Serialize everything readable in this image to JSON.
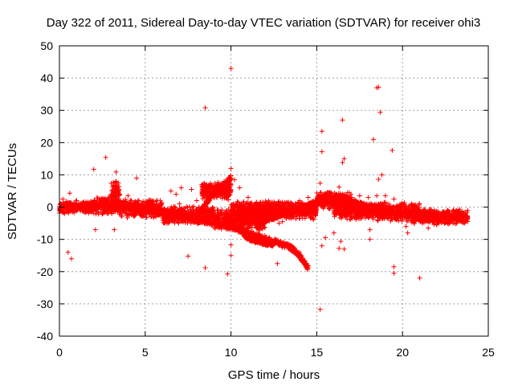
{
  "chart_data": {
    "type": "scatter",
    "title": "Day 322 of 2011, Sidereal Day-to-day VTEC variation (SDTVAR) for receiver ohi3",
    "xlabel": "GPS time / hours",
    "ylabel": "SDTVAR / TECUs",
    "xlim": [
      0,
      25
    ],
    "ylim": [
      -40,
      50
    ],
    "x_ticks": [
      0,
      5,
      10,
      15,
      20,
      25
    ],
    "y_ticks": [
      -40,
      -30,
      -20,
      -10,
      0,
      10,
      20,
      30,
      40,
      50
    ],
    "x_tick_labels": [
      "0",
      "5",
      "10",
      "15",
      "20",
      "25"
    ],
    "y_tick_labels": [
      "-40",
      "-30",
      "-20",
      "-10",
      "0",
      "10",
      "20",
      "30",
      "40",
      "50"
    ],
    "grid": true,
    "marker": "+",
    "color": "#ff0000",
    "series": [
      {
        "name": "SDTVAR",
        "points": [
          [
            10.0,
            43.0
          ],
          [
            18.5,
            37.0
          ],
          [
            18.6,
            37.2
          ],
          [
            8.5,
            30.8
          ],
          [
            18.7,
            29.4
          ],
          [
            16.5,
            27.0
          ],
          [
            15.3,
            23.5
          ],
          [
            18.3,
            21.0
          ],
          [
            15.3,
            17.2
          ],
          [
            19.4,
            17.6
          ],
          [
            2.7,
            15.4
          ],
          [
            16.6,
            15.0
          ],
          [
            16.5,
            13.8
          ],
          [
            10.0,
            12.0
          ],
          [
            2.0,
            11.7
          ],
          [
            3.3,
            10.9
          ],
          [
            18.8,
            10.0
          ],
          [
            4.5,
            9.0
          ],
          [
            18.6,
            8.6
          ],
          [
            7.1,
            6.0
          ],
          [
            7.7,
            5.5
          ],
          [
            15.2,
            7.4
          ],
          [
            16.3,
            6.2
          ],
          [
            0.2,
            2.5
          ],
          [
            0.4,
            1.8
          ],
          [
            0.6,
            0.5
          ],
          [
            0.8,
            1.0
          ],
          [
            1.0,
            2.0
          ],
          [
            1.2,
            -0.5
          ],
          [
            1.5,
            0.8
          ],
          [
            0.3,
            -2.0
          ],
          [
            0.6,
            4.3
          ],
          [
            0.5,
            -14.0
          ],
          [
            0.7,
            -16.0
          ],
          [
            2.1,
            -7.0
          ],
          [
            3.2,
            -7.0
          ],
          [
            7.5,
            -15.2
          ],
          [
            8.5,
            -18.8
          ],
          [
            9.0,
            3.0
          ],
          [
            9.2,
            -1.0
          ],
          [
            9.8,
            -20.7
          ],
          [
            10.0,
            -11.7
          ],
          [
            10.0,
            -15.0
          ],
          [
            12.7,
            -17.5
          ],
          [
            14.0,
            -14.0
          ],
          [
            15.2,
            -31.7
          ],
          [
            15.3,
            -12.0
          ],
          [
            15.5,
            -9.5
          ],
          [
            16.3,
            -12.8
          ],
          [
            16.6,
            -13.0
          ],
          [
            16.4,
            -10.6
          ],
          [
            16.0,
            -8.0
          ],
          [
            18.1,
            -10.0
          ],
          [
            18.1,
            -7.0
          ],
          [
            19.5,
            -18.5
          ],
          [
            19.5,
            -20.5
          ],
          [
            20.2,
            -6.0
          ],
          [
            21.0,
            -22.0
          ],
          [
            20.3,
            -8.0
          ],
          [
            21.5,
            -6.5
          ],
          [
            22.0,
            -5.5
          ],
          [
            23.0,
            -5.0
          ],
          [
            4.0,
            3.5
          ],
          [
            4.5,
            1.5
          ],
          [
            5.0,
            0.5
          ],
          [
            5.5,
            -1.0
          ],
          [
            6.0,
            -2.0
          ],
          [
            6.5,
            -2.5
          ],
          [
            7.0,
            -3.0
          ],
          [
            7.5,
            -3.5
          ],
          [
            8.0,
            -4.0
          ],
          [
            8.5,
            -4.5
          ],
          [
            9.0,
            -5.0
          ],
          [
            9.5,
            -5.5
          ],
          [
            10.5,
            -6.0
          ],
          [
            11.0,
            -8.0
          ],
          [
            11.5,
            -9.5
          ],
          [
            12.0,
            -10.5
          ],
          [
            12.5,
            -11.5
          ],
          [
            13.0,
            -12.5
          ],
          [
            13.5,
            -13.5
          ],
          [
            14.0,
            -15.5
          ],
          [
            14.3,
            -17.5
          ],
          [
            14.5,
            -18.8
          ],
          [
            8.0,
            2.0
          ],
          [
            8.5,
            0.0
          ],
          [
            8.3,
            7.0
          ],
          [
            8.5,
            4.5
          ],
          [
            8.8,
            6.5
          ],
          [
            9.2,
            7.0
          ],
          [
            9.6,
            8.0
          ],
          [
            10.0,
            9.0
          ],
          [
            10.2,
            8.5
          ],
          [
            10.5,
            6.0
          ],
          [
            11.0,
            3.0
          ],
          [
            11.5,
            1.5
          ],
          [
            12.0,
            0.5
          ],
          [
            12.5,
            0.0
          ],
          [
            13.0,
            -0.5
          ],
          [
            13.5,
            0.0
          ],
          [
            14.0,
            2.0
          ],
          [
            14.5,
            3.0
          ],
          [
            15.0,
            2.0
          ],
          [
            15.5,
            3.5
          ],
          [
            16.0,
            3.0
          ],
          [
            16.5,
            1.0
          ],
          [
            17.0,
            -1.0
          ],
          [
            17.5,
            -2.0
          ],
          [
            18.0,
            -3.0
          ],
          [
            18.5,
            -2.0
          ],
          [
            19.0,
            -1.0
          ],
          [
            19.5,
            -2.5
          ],
          [
            20.0,
            -3.0
          ],
          [
            20.5,
            -3.5
          ],
          [
            21.0,
            -4.0
          ],
          [
            21.5,
            -3.5
          ],
          [
            22.0,
            -3.0
          ],
          [
            22.5,
            -2.5
          ],
          [
            23.0,
            -3.5
          ],
          [
            23.5,
            -3.0
          ],
          [
            2.0,
            1.5
          ],
          [
            2.5,
            2.5
          ],
          [
            3.0,
            3.0
          ],
          [
            3.5,
            4.0
          ],
          [
            3.3,
            8.0
          ],
          [
            3.4,
            6.0
          ],
          [
            6.5,
            5.0
          ],
          [
            6.8,
            4.0
          ],
          [
            7.0,
            1.0
          ],
          [
            12.5,
            -4.0
          ],
          [
            12.8,
            -5.0
          ],
          [
            13.0,
            -4.5
          ],
          [
            13.5,
            -3.5
          ],
          [
            14.0,
            -2.5
          ],
          [
            16.5,
            4.0
          ],
          [
            17.0,
            3.0
          ],
          [
            17.5,
            3.5
          ],
          [
            18.0,
            3.0
          ],
          [
            18.5,
            3.5
          ],
          [
            19.0,
            3.5
          ],
          [
            19.5,
            2.5
          ],
          [
            20.0,
            1.0
          ],
          [
            20.5,
            0.0
          ],
          [
            21.0,
            -1.0
          ]
        ],
        "bands": [
          {
            "x0": 0.0,
            "x1": 2.0,
            "y_center": 0.0,
            "y_half": 2.0
          },
          {
            "x0": 2.0,
            "x1": 3.5,
            "y_center": 0.5,
            "y_half": 3.0
          },
          {
            "x0": 3.0,
            "x1": 3.5,
            "y_center": 4.5,
            "y_half": 4.0
          },
          {
            "x0": 3.5,
            "x1": 6.0,
            "y_center": -0.5,
            "y_half": 3.0
          },
          {
            "x0": 6.0,
            "x1": 9.0,
            "y_center": -2.5,
            "y_half": 3.0
          },
          {
            "x0": 8.3,
            "x1": 10.0,
            "y_center": 5.0,
            "y_half": 3.0
          },
          {
            "x0": 9.0,
            "x1": 12.0,
            "y_center": -4.0,
            "y_half": 3.5
          },
          {
            "x0": 10.0,
            "x1": 12.5,
            "y_center": -1.0,
            "y_half": 3.0
          },
          {
            "x0": 12.0,
            "x1": 15.0,
            "y_center": -1.0,
            "y_half": 3.0
          },
          {
            "x0": 15.0,
            "x1": 17.0,
            "y_center": 2.0,
            "y_half": 3.0
          },
          {
            "x0": 16.0,
            "x1": 19.0,
            "y_center": -1.0,
            "y_half": 3.0
          },
          {
            "x0": 18.5,
            "x1": 21.0,
            "y_center": -1.5,
            "y_half": 3.0
          },
          {
            "x0": 20.5,
            "x1": 23.8,
            "y_center": -3.0,
            "y_half": 2.5
          }
        ],
        "curves": [
          {
            "x": [
              3.5,
              5.0,
              6.5,
              8.0,
              9.5,
              11.0,
              12.5,
              13.5,
              14.0,
              14.5
            ],
            "y": [
              1.0,
              -1.0,
              -2.5,
              -4.0,
              -5.5,
              -8.0,
              -10.5,
              -12.5,
              -15.0,
              -19.0
            ]
          },
          {
            "x": [
              8.0,
              8.5,
              9.0,
              9.5,
              10.0
            ],
            "y": [
              -4.0,
              1.0,
              4.5,
              6.5,
              9.0
            ]
          },
          {
            "x": [
              10.0,
              10.5,
              11.0,
              11.5,
              12.0,
              12.5
            ],
            "y": [
              -5.0,
              -7.0,
              -9.5,
              -10.5,
              -11.0,
              -11.5
            ]
          },
          {
            "x": [
              11.5,
              12.0,
              12.5,
              13.0,
              13.5,
              14.0,
              14.5,
              15.0
            ],
            "y": [
              -5.5,
              -4.0,
              -3.0,
              -2.0,
              -1.5,
              -0.5,
              0.5,
              1.5
            ]
          },
          {
            "x": [
              10.5,
              11.0,
              11.5,
              12.0,
              12.5
            ],
            "y": [
              -4.0,
              -2.0,
              -1.0,
              -0.5,
              -0.5
            ]
          },
          {
            "x": [
              15.0,
              16.0,
              17.0,
              18.0,
              19.0,
              20.0
            ],
            "y": [
              2.0,
              3.0,
              2.0,
              0.0,
              -1.0,
              -2.5
            ]
          }
        ]
      }
    ]
  }
}
